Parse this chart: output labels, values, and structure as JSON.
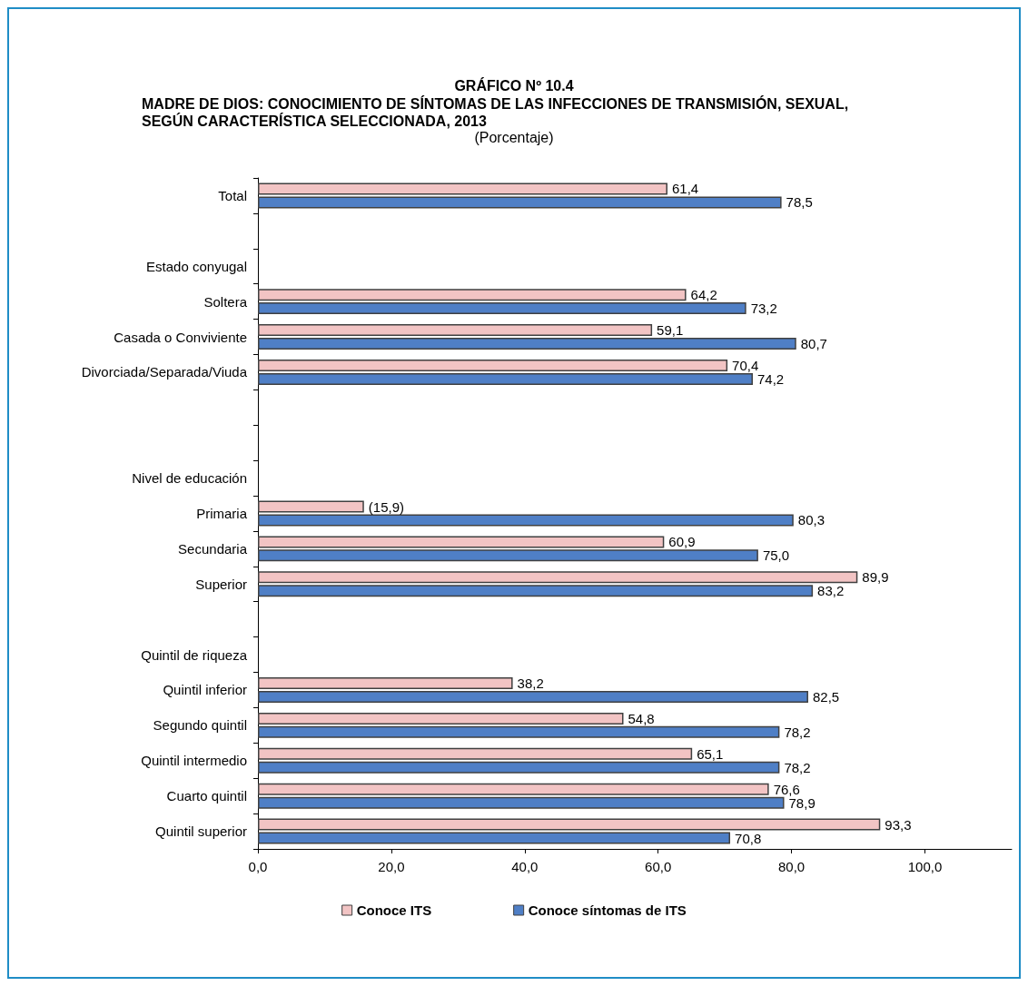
{
  "chart_data": {
    "type": "bar",
    "orientation": "horizontal",
    "title": "GRÁFICO Nº 10.4",
    "subtitle": "MADRE DE DIOS: CONOCIMIENTO DE SÍNTOMAS DE LAS INFECCIONES DE TRANSMISIÓN, SEXUAL, SEGÚN CARACTERÍSTICA SELECCIONADA, 2013",
    "annotations": [
      "(Porcentaje)"
    ],
    "categories": [
      "Total",
      null,
      "Estado conyugal",
      "Soltera",
      "Casada o Conviviente",
      "Divorciada/Separada/Viuda",
      null,
      null,
      "Nivel de educación",
      "Primaria",
      "Secundaria",
      "Superior",
      null,
      "Quintil de riqueza",
      "Quintil inferior",
      "Segundo quintil",
      "Quintil intermedio",
      "Cuarto quintil",
      "Quintil superior"
    ],
    "series": [
      {
        "name": "Conoce ITS",
        "color": "#f2c4c4",
        "values": [
          61.4,
          null,
          null,
          64.2,
          59.1,
          70.4,
          null,
          null,
          null,
          15.9,
          60.9,
          89.9,
          null,
          null,
          38.2,
          54.8,
          65.1,
          76.6,
          93.3
        ],
        "value_labels": [
          "61,4",
          null,
          null,
          "64,2",
          "59,1",
          "70,4",
          null,
          null,
          null,
          "(15,9)",
          "60,9",
          "89,9",
          null,
          null,
          "38,2",
          "54,8",
          "65,1",
          "76,6",
          "93,3"
        ]
      },
      {
        "name": "Conoce síntomas de ITS",
        "color": "#4f7fc6",
        "values": [
          78.5,
          null,
          null,
          73.2,
          80.7,
          74.2,
          null,
          null,
          null,
          80.3,
          75.0,
          83.2,
          null,
          null,
          82.5,
          78.2,
          78.2,
          78.9,
          70.8
        ],
        "value_labels": [
          "78,5",
          null,
          null,
          "73,2",
          "80,7",
          "74,2",
          null,
          null,
          null,
          "80,3",
          "75,0",
          "83,2",
          null,
          null,
          "82,5",
          "78,2",
          "78,2",
          "78,9",
          "70,8"
        ]
      }
    ],
    "xlim": [
      0,
      113
    ],
    "xticks": [
      {
        "value": 0,
        "label": "0,0"
      },
      {
        "value": 20,
        "label": "20,0"
      },
      {
        "value": 40,
        "label": "40,0"
      },
      {
        "value": 60,
        "label": "60,0"
      },
      {
        "value": 80,
        "label": "80,0"
      },
      {
        "value": 100,
        "label": "100,0"
      }
    ],
    "grid": false,
    "legend": "bottom"
  }
}
